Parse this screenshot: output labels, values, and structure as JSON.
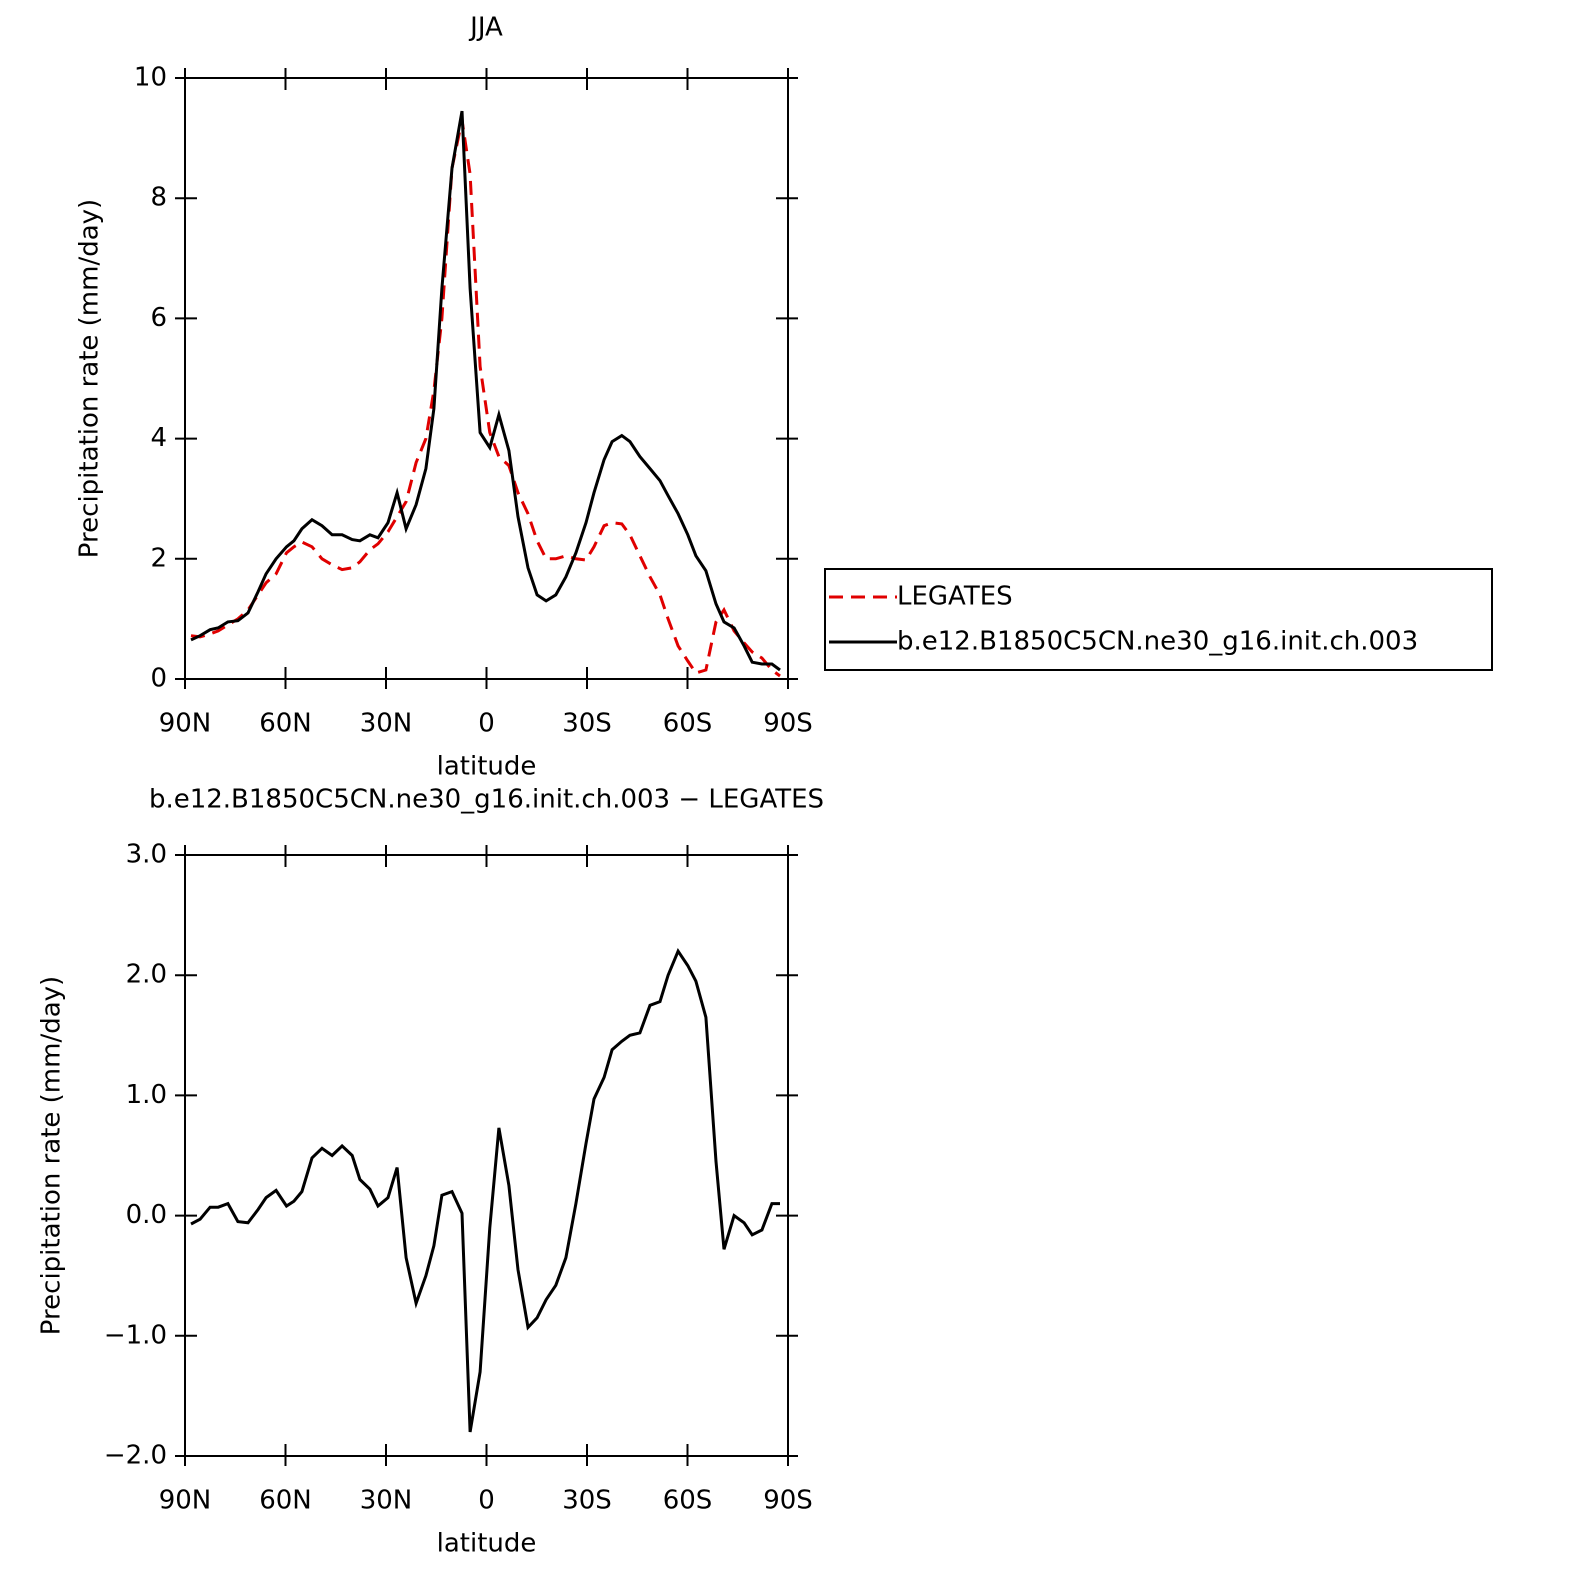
{
  "chart_data": [
    {
      "type": "line",
      "title": "JJA",
      "xlabel": "latitude",
      "ylabel": "Precipitation rate (mm/day)",
      "x": [
        88.2,
        85.5,
        82.5,
        80.1,
        77.2,
        74.2,
        71.2,
        68.2,
        65.8,
        62.8,
        59.7,
        57.5,
        55.1,
        52.1,
        49.1,
        46.1,
        43.1,
        40.1,
        37.8,
        34.8,
        32.4,
        29.4,
        26.7,
        24.0,
        21.0,
        18.1,
        15.7,
        13.3,
        10.3,
        7.3,
        4.9,
        1.9,
        -1.0,
        -3.7,
        -6.7,
        -9.4,
        -12.4,
        -15.1,
        -17.8,
        -20.7,
        -23.7,
        -26.7,
        -29.7,
        -32.1,
        -35.1,
        -37.5,
        -40.4,
        -42.8,
        -45.8,
        -48.8,
        -51.8,
        -54.2,
        -57.2,
        -60.1,
        -62.5,
        -65.5,
        -68.5,
        -70.9,
        -73.9,
        -76.9,
        -79.3,
        -82.2,
        -85.2,
        -87.6
      ],
      "series": [
        {
          "name": "LEGATES",
          "color": "#e00000",
          "dash": true,
          "values": [
            0.72,
            0.7,
            0.75,
            0.8,
            0.9,
            1.0,
            1.15,
            1.4,
            1.6,
            1.75,
            2.1,
            2.2,
            2.28,
            2.2,
            2.0,
            1.9,
            1.82,
            1.85,
            1.95,
            2.15,
            2.25,
            2.45,
            2.7,
            2.95,
            3.6,
            4.0,
            4.8,
            6.0,
            8.5,
            9.3,
            8.4,
            5.2,
            4.1,
            3.7,
            3.55,
            3.1,
            2.75,
            2.3,
            2.0,
            2.0,
            2.05,
            2.0,
            1.98,
            2.2,
            2.55,
            2.6,
            2.58,
            2.4,
            2.05,
            1.7,
            1.4,
            1.0,
            0.55,
            0.3,
            0.1,
            0.15,
            0.95,
            1.15,
            0.8,
            0.6,
            0.45,
            0.35,
            0.15,
            0.05
          ]
        },
        {
          "name": "b.e12.B1850C5CN.ne30_g16.init.ch.003",
          "color": "#000000",
          "dash": false,
          "values": [
            0.65,
            0.72,
            0.82,
            0.85,
            0.95,
            0.97,
            1.1,
            1.45,
            1.75,
            2.0,
            2.2,
            2.3,
            2.5,
            2.65,
            2.55,
            2.4,
            2.4,
            2.32,
            2.3,
            2.4,
            2.35,
            2.6,
            3.1,
            2.5,
            2.9,
            3.5,
            4.5,
            6.5,
            8.5,
            9.45,
            6.5,
            4.1,
            3.85,
            4.4,
            3.8,
            2.7,
            1.85,
            1.4,
            1.3,
            1.4,
            1.7,
            2.1,
            2.6,
            3.1,
            3.65,
            3.95,
            4.05,
            3.95,
            3.7,
            3.5,
            3.3,
            3.05,
            2.75,
            2.4,
            2.05,
            1.8,
            1.25,
            0.95,
            0.85,
            0.55,
            0.28,
            0.25,
            0.25,
            0.15
          ]
        }
      ],
      "legend": "right",
      "xlim": [
        90,
        -90
      ],
      "ylim": [
        0,
        10
      ],
      "xticks": [
        {
          "value": 90,
          "label": "90N"
        },
        {
          "value": 60,
          "label": "60N"
        },
        {
          "value": 30,
          "label": "30N"
        },
        0,
        {
          "value": -30,
          "label": "30S"
        },
        {
          "value": -60,
          "label": "60S"
        },
        {
          "value": -90,
          "label": "90S"
        }
      ],
      "yticks": [
        0,
        2,
        4,
        6,
        8,
        10
      ]
    },
    {
      "type": "line",
      "title": "b.e12.B1850C5CN.ne30_g16.init.ch.003 − LEGATES",
      "xlabel": "latitude",
      "ylabel": "Precipitation rate (mm/day)",
      "x": [
        88.2,
        85.5,
        82.5,
        80.1,
        77.2,
        74.2,
        71.2,
        68.2,
        65.8,
        62.8,
        59.7,
        57.5,
        55.1,
        52.1,
        49.1,
        46.1,
        43.1,
        40.1,
        37.8,
        34.8,
        32.4,
        29.4,
        26.7,
        24.0,
        21.0,
        18.1,
        15.7,
        13.3,
        10.3,
        7.3,
        4.9,
        1.9,
        -1.0,
        -3.7,
        -6.7,
        -9.4,
        -12.4,
        -15.1,
        -17.8,
        -20.7,
        -23.7,
        -26.7,
        -29.7,
        -32.1,
        -35.1,
        -37.5,
        -40.4,
        -42.8,
        -45.8,
        -48.8,
        -51.8,
        -54.2,
        -57.2,
        -60.1,
        -62.5,
        -65.5,
        -68.5,
        -70.9,
        -73.9,
        -76.9,
        -79.3,
        -82.2,
        -85.2,
        -87.6
      ],
      "series": [
        {
          "color": "#000000",
          "dash": false,
          "values": [
            -0.07,
            -0.03,
            0.07,
            0.07,
            0.1,
            -0.05,
            -0.06,
            0.05,
            0.15,
            0.21,
            0.08,
            0.12,
            0.2,
            0.48,
            0.56,
            0.5,
            0.58,
            0.5,
            0.3,
            0.22,
            0.08,
            0.15,
            0.4,
            -0.35,
            -0.73,
            -0.5,
            -0.25,
            0.17,
            0.2,
            0.02,
            -1.8,
            -1.3,
            -0.1,
            0.73,
            0.25,
            -0.45,
            -0.93,
            -0.85,
            -0.7,
            -0.58,
            -0.35,
            0.1,
            0.6,
            0.97,
            1.15,
            1.38,
            1.45,
            1.5,
            1.52,
            1.75,
            1.78,
            2.0,
            2.2,
            2.08,
            1.95,
            1.65,
            0.45,
            -0.28,
            0.0,
            -0.06,
            -0.16,
            -0.12,
            0.1,
            0.1
          ]
        }
      ],
      "xlim": [
        90,
        -90
      ],
      "ylim": [
        -2,
        3
      ],
      "xticks": [
        {
          "value": 90,
          "label": "90N"
        },
        {
          "value": 60,
          "label": "60N"
        },
        {
          "value": 30,
          "label": "30N"
        },
        0,
        {
          "value": -30,
          "label": "30S"
        },
        {
          "value": -60,
          "label": "60S"
        },
        {
          "value": -90,
          "label": "90S"
        }
      ],
      "yticks": [
        {
          "value": -2,
          "label": "−2.0"
        },
        {
          "value": -1,
          "label": "−1.0"
        },
        {
          "value": 0,
          "label": "0.0"
        },
        {
          "value": 1,
          "label": "1.0"
        },
        {
          "value": 2,
          "label": "2.0"
        },
        {
          "value": 3,
          "label": "3.0"
        }
      ]
    }
  ]
}
